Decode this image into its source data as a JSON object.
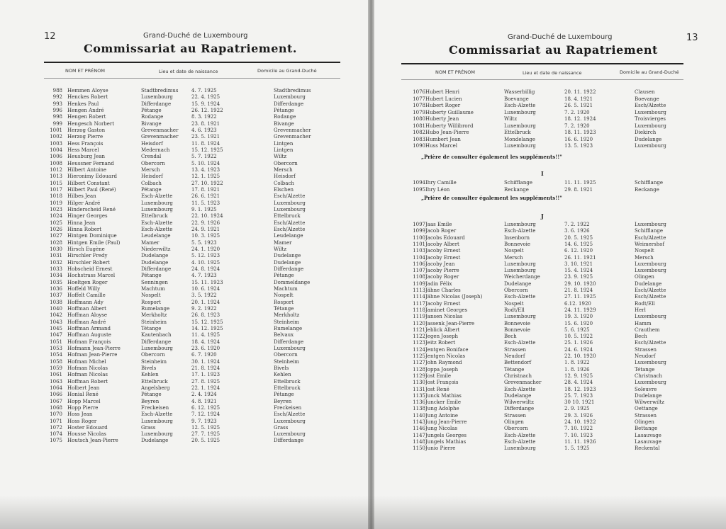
{
  "left_page": {
    "page_number": "12",
    "supertitle": "Grand-Duché de Luxembourg",
    "title": "Commissariat au Rapatriement.",
    "columns": [
      "NOM ET PRÉNOM",
      "Lieu et date de naissance",
      "Domicile au Grand-Duché"
    ],
    "rows": [
      [
        "988",
        "Hemmen Aloyse",
        "Stadtbredimus",
        "4. 7. 1925",
        "Stadtbredimus"
      ],
      [
        "992",
        "Henckes Robert",
        "Luxembourg",
        "22. 4. 1925",
        "Luxembourg"
      ],
      [
        "993",
        "Henkes Paul",
        "Differdange",
        "15. 9. 1924",
        "Differdange"
      ],
      [
        "996",
        "Hengen André",
        "Pétange",
        "26. 12. 1922",
        "Pétange"
      ],
      [
        "998",
        "Hengen Robert",
        "Rodange",
        "8. 3. 1922",
        "Rodange"
      ],
      [
        "999",
        "Hengesch Norbert",
        "Bivange",
        "23. 8. 1921",
        "Bivange"
      ],
      [
        "1001",
        "Herzog Gaston",
        "Grevenmacher",
        "4. 6. 1923",
        "Grevenmacher"
      ],
      [
        "1002",
        "Herzog Pierre",
        "Grevenmacher",
        "23. 5. 1921",
        "Grevenmacher"
      ],
      [
        "1003",
        "Hess François",
        "Heisdorf",
        "11. 8. 1924",
        "Lintgen"
      ],
      [
        "1004",
        "Hess Marcel",
        "Medernach",
        "15. 12. 1925",
        "Lintgen"
      ],
      [
        "1006",
        "Heusburg Jean",
        "Crendal",
        "5. 7. 1922",
        "Wiltz"
      ],
      [
        "1008",
        "Heussner Fernand",
        "Obercorn",
        "5. 10. 1924",
        "Obercorn"
      ],
      [
        "1012",
        "Hilbert Antoine",
        "Mersch",
        "13. 4. 1923",
        "Mersch"
      ],
      [
        "1013",
        "Hieronimy Edouard",
        "Heisdorf",
        "12. 1. 1925",
        "Heisdorf"
      ],
      [
        "1015",
        "Hilbert Constant",
        "Colbach",
        "27. 10. 1922",
        "Colbach"
      ],
      [
        "1017",
        "Hilbert Paul (René)",
        "Pétange",
        "17. 8. 1921",
        "Elschen"
      ],
      [
        "1018",
        "Hilbes Jean",
        "Esch-Alzette",
        "26. 6. 1921",
        "Esch/Alzette"
      ],
      [
        "1019",
        "Hilger André",
        "Luxembourg",
        "11. 5. 1923",
        "Luxembourg"
      ],
      [
        "1023",
        "Hinderscheid René",
        "Luxembourg",
        "9. 1. 1925",
        "Luxembourg"
      ],
      [
        "1024",
        "Hinger Georges",
        "Ettelbruck",
        "22. 10. 1924",
        "Ettelbruck"
      ],
      [
        "1025",
        "Hinna Jean",
        "Esch-Alzette",
        "22. 9. 1926",
        "Esch/Alzette"
      ],
      [
        "1026",
        "Hinna Robert",
        "Esch-Alzette",
        "24. 9. 1921",
        "Esch/Alzette"
      ],
      [
        "1027",
        "Hintgen Dominique",
        "Leudelange",
        "10. 3. 1925",
        "Leudelange"
      ],
      [
        "1028",
        "Hintgen Emile (Paul)",
        "Mamer",
        "5. 5. 1923",
        "Mamer"
      ],
      [
        "1030",
        "Hirsch Eugène",
        "Niederwiltz",
        "24. 1. 1920",
        "Wiltz"
      ],
      [
        "1031",
        "Hirschler Fredy",
        "Dudelange",
        "5. 12. 1923",
        "Dudelange"
      ],
      [
        "1032",
        "Hirschler Robert",
        "Dudelange",
        "4. 10. 1925",
        "Dudelange"
      ],
      [
        "1033",
        "Hobscheid Ernest",
        "Differdange",
        "24. 8. 1924",
        "Differdange"
      ],
      [
        "1034",
        "Hochstrass Marcel",
        "Pétange",
        "4. 7. 1923",
        "Pétange"
      ],
      [
        "1035",
        "Hoeltgen Roger",
        "Senningen",
        "15. 11. 1923",
        "Dommeldange"
      ],
      [
        "1036",
        "Hoffeld Willy",
        "Machtum",
        "10. 6. 1924",
        "Machtum"
      ],
      [
        "1037",
        "Hoffelt Camille",
        "Nospelt",
        "3. 5. 1922",
        "Nospelt"
      ],
      [
        "1038",
        "Hoffmann Ady",
        "Rosport",
        "20. 1. 1924",
        "Rosport"
      ],
      [
        "1040",
        "Hoffman Albert",
        "Rumelange",
        "9. 2. 1922",
        "Tétange"
      ],
      [
        "1042",
        "Hoffman Aloyse",
        "Merkholtz",
        "26. 8. 1923",
        "Merkholtz"
      ],
      [
        "1043",
        "Hoffman André",
        "Steinheim",
        "15. 12. 1925",
        "Steinheim"
      ],
      [
        "1045",
        "Hoffman Armand",
        "Tétange",
        "14. 12. 1925",
        "Rumelange"
      ],
      [
        "1047",
        "Hoffman Auguste",
        "Kautenbach",
        "11. 4. 1925",
        "Belvaux"
      ],
      [
        "1051",
        "Hofman François",
        "Differdange",
        "18. 4. 1924",
        "Differdange"
      ],
      [
        "1053",
        "Hofmann Jean-Pierre",
        "Luxembourg",
        "23. 6. 1920",
        "Luxembourg"
      ],
      [
        "1054",
        "Hofman Jean-Pierre",
        "Obercorn",
        "6. 7. 1920",
        "Obercorn"
      ],
      [
        "1058",
        "Hofman Michel",
        "Steinheim",
        "30. 1. 1924",
        "Steinheim"
      ],
      [
        "1059",
        "Hofman Nicolas",
        "Bivels",
        "21. 8. 1924",
        "Bivels"
      ],
      [
        "1061",
        "Hofman Nicolas",
        "Kehlen",
        "17. 1. 1923",
        "Kehlen"
      ],
      [
        "1063",
        "Hoffman Robert",
        "Ettelbruck",
        "27. 8. 1925",
        "Ettelbruck"
      ],
      [
        "1064",
        "Holbert Jean",
        "Angelsberg",
        "22. 1. 1924",
        "Ettelbruck"
      ],
      [
        "1066",
        "Honial René",
        "Pétange",
        "2. 4. 1924",
        "Pétange"
      ],
      [
        "1067",
        "Hopp Marcel",
        "Beyren",
        "4. 8. 1921",
        "Beyren"
      ],
      [
        "1068",
        "Hopp Pierre",
        "Freckeisen",
        "6. 12. 1925",
        "Freckeisen"
      ],
      [
        "1070",
        "Hoss Jean",
        "Esch-Alzette",
        "7. 12. 1924",
        "Esch/Alzette"
      ],
      [
        "1071",
        "Hoss Roger",
        "Luxembourg",
        "9. 7. 1923",
        "Luxembourg"
      ],
      [
        "1072",
        "Hoster Edouard",
        "Grass",
        "12. 5. 1925",
        "Grass"
      ],
      [
        "1074",
        "Housse Nicolas",
        "Luxembourg",
        "27. 7. 1925",
        "Luxembourg"
      ],
      [
        "1075",
        "Houtsch Jean-Pierre",
        "Dudelange",
        "20. 5. 1925",
        "Differdange"
      ]
    ]
  },
  "right_page": {
    "page_number": "13",
    "supertitle": "Grand-Duché de Luxembourg",
    "title": "Commissariat au Rapatriement",
    "columns": [
      "NOM ET PRÉNOM",
      "Lieu et date de naissance",
      "Domicile au Grand-Duché"
    ],
    "sections": [
      {
        "letter": "",
        "note": "„Prière de consulter également les suppléments!!\"",
        "rows": [
          [
            "1076",
            "Hubert Henri",
            "Wasserbillig",
            "20. 11. 1922",
            "Clausen"
          ],
          [
            "1077",
            "Hubert Lucien",
            "Boevange",
            "18. 4. 1921",
            "Boevange"
          ],
          [
            "1078",
            "Hubert Roger",
            "Esch-Alzette",
            "26. 5. 1921",
            "Esch/Alzette"
          ],
          [
            "1079",
            "Huberty Guillaume",
            "Luxembourg",
            "7. 2. 1920",
            "Luxembourg"
          ],
          [
            "1080",
            "Huberty Jean",
            "Wiltz",
            "18. 12. 1924",
            "Troisvierges"
          ],
          [
            "1081",
            "Huberty Willibrord",
            "Luxembourg",
            "7. 2. 1920",
            "Luxembourg"
          ],
          [
            "1082",
            "Hubo Jean-Pierre",
            "Ettelbruck",
            "18. 11. 1923",
            "Diekirch"
          ],
          [
            "1083",
            "Humbert Jean",
            "Mondelange",
            "16. 6. 1920",
            "Dudelange"
          ],
          [
            "1090",
            "Huss Marcel",
            "Luxembourg",
            "13. 5. 1923",
            "Luxembourg"
          ]
        ]
      },
      {
        "letter": "I",
        "note": "„Prière de consulter également les suppléments!!\"",
        "rows": [
          [
            "1094",
            "Ihry Camille",
            "Schifflange",
            "11. 11. 1925",
            "Schifflange"
          ],
          [
            "1095",
            "Ihry Léon",
            "Reckange",
            "29. 8. 1921",
            "Reckange"
          ]
        ]
      },
      {
        "letter": "J",
        "note": "",
        "rows": [
          [
            "1097",
            "Jaas Emile",
            "Luxembourg",
            "7. 2. 1922",
            "Luxembourg"
          ],
          [
            "1099",
            "Jacob Roger",
            "Esch-Alzette",
            "3. 6. 1926",
            "Schifflange"
          ],
          [
            "1100",
            "Jacobs Edouard",
            "Insenborn",
            "20. 5. 1925",
            "Esch/Alzette"
          ],
          [
            "1101",
            "Jacoby Albert",
            "Bonnevoie",
            "14. 6. 1925",
            "Weimershof"
          ],
          [
            "1103",
            "Jacoby Ernest",
            "Nospelt",
            "6. 12. 1920",
            "Nospelt"
          ],
          [
            "1104",
            "Jacoby Ernest",
            "Mersch",
            "26. 11. 1921",
            "Mersch"
          ],
          [
            "1106",
            "Jacoby Jean",
            "Luxembourg",
            "3. 10. 1921",
            "Luxembourg"
          ],
          [
            "1107",
            "Jacoby Pierre",
            "Luxembourg",
            "15. 4. 1924",
            "Luxembourg"
          ],
          [
            "1108",
            "Jacoby Roger",
            "Weicherdange",
            "23. 9. 1925",
            "Olingen"
          ],
          [
            "1109",
            "Jadin Félix",
            "Dudelange",
            "29. 10. 1920",
            "Dudelange"
          ],
          [
            "1113",
            "Jähne Charles",
            "Obercorn",
            "21. 8. 1924",
            "Esch/Alzette"
          ],
          [
            "1114",
            "Jähne Nicolas (Joseph)",
            "Esch-Alzette",
            "27. 11. 1925",
            "Esch/Alzette"
          ],
          [
            "1117",
            "Jacoby Ernest",
            "Nospelt",
            "6.12. 1920",
            "Rodt/Ell"
          ],
          [
            "1118",
            "Jaminet Georges",
            "Rodt/Ell",
            "24. 11. 1929",
            "Herl"
          ],
          [
            "1119",
            "Jansen Nicolas",
            "Luxembourg",
            "19. 3. 1920",
            "Luxembourg"
          ],
          [
            "1120",
            "Jassenk Jean-Pierre",
            "Bonnevoie",
            "15. 6. 1920",
            "Hamm"
          ],
          [
            "1121",
            "Jeblick Albert",
            "Bonnevoie",
            "5. 6. 1925",
            "Crauthem"
          ],
          [
            "1122",
            "Jegen Joseph",
            "Bech",
            "10. 5. 1922",
            "Bech"
          ],
          [
            "1123",
            "Jeitz Robert",
            "Esch-Alzette",
            "25. 1. 1926",
            "Esch/Alzette"
          ],
          [
            "1124",
            "Jentgen Boniface",
            "Strassen",
            "24. 6. 1924",
            "Strassen"
          ],
          [
            "1125",
            "Jentgen Nicolas",
            "Neudorf",
            "22. 10. 1920",
            "Neudorf"
          ],
          [
            "1127",
            "John Raymond",
            "Bettendorf",
            "1. 8. 1922",
            "Luxembourg"
          ],
          [
            "1128",
            "Joppa Joseph",
            "Tétange",
            "1. 8. 1926",
            "Tétange"
          ],
          [
            "1129",
            "Jost Emile",
            "Christnach",
            "12. 9. 1925",
            "Christnach"
          ],
          [
            "1130",
            "Jost François",
            "Grevenmacher",
            "28. 4. 1924",
            "Luxembourg"
          ],
          [
            "1131",
            "Jost René",
            "Esch-Alzette",
            "18. 12. 1923",
            "Soleuvre"
          ],
          [
            "1135",
            "Junck Mathias",
            "Dudelange",
            "25. 7. 1923",
            "Dudelange"
          ],
          [
            "1136",
            "Juncker Emile",
            "Wilwerwiltz",
            "30 10. 1921",
            "Wilwerwiltz"
          ],
          [
            "1138",
            "Jung Adolphe",
            "Differdange",
            "2. 9. 1925",
            "Oettange"
          ],
          [
            "1140",
            "Jung Antoine",
            "Strassen",
            "29. 3. 1926",
            "Strassen"
          ],
          [
            "1143",
            "Jung Jean-Pierre",
            "Olingen",
            "24. 10. 1922",
            "Olingen"
          ],
          [
            "1146",
            "Jung Nicolas",
            "Obercorn",
            "7. 10. 1922",
            "Bettange"
          ],
          [
            "1147",
            "Jungels Georges",
            "Esch-Alzette",
            "7. 10. 1923",
            "Lasauvage"
          ],
          [
            "1148",
            "Jungels Mathias",
            "Esch-Alzette",
            "11. 11. 1926",
            "Lasauvage"
          ],
          [
            "1150",
            "Junio Pierre",
            "Luxembourg",
            "1. 5. 1925",
            "Reckental"
          ]
        ]
      }
    ]
  }
}
